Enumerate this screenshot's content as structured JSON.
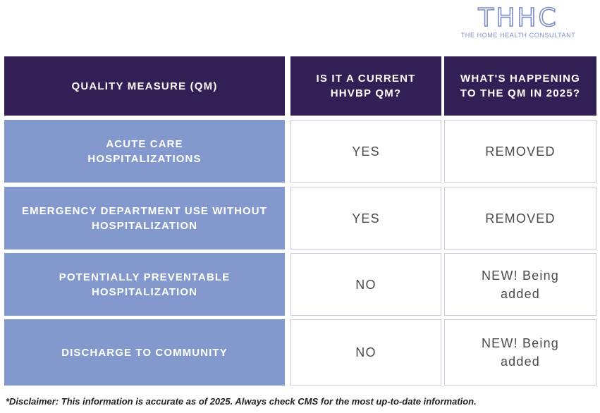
{
  "logo": {
    "mark": "THHC",
    "tagline": "THE HOME HEALTH CONSULTANT"
  },
  "table": {
    "headers": [
      "QUALITY MEASURE (QM)",
      "IS IT A CURRENT HHVBP QM?",
      "WHAT'S HAPPENING TO THE QM IN 2025?"
    ],
    "rows": [
      {
        "measure": "ACUTE CARE HOSPITALIZATIONS",
        "current": "YES",
        "change": "REMOVED"
      },
      {
        "measure": "EMERGENCY DEPARTMENT USE WITHOUT HOSPITALIZATION",
        "current": "YES",
        "change": "REMOVED"
      },
      {
        "measure": "POTENTIALLY PREVENTABLE HOSPITALIZATION",
        "current": "NO",
        "change": "NEW! Being added"
      },
      {
        "measure": "DISCHARGE TO COMMUNITY",
        "current": "NO",
        "change": "NEW! Being added"
      }
    ]
  },
  "disclaimer": "*Disclaimer: This information is accurate as of 2025. Always check CMS for the most up-to-date information.",
  "colors": {
    "header_bg": "#321f55",
    "measure_bg": "#8399cd",
    "logo": "#7d8ec7"
  }
}
